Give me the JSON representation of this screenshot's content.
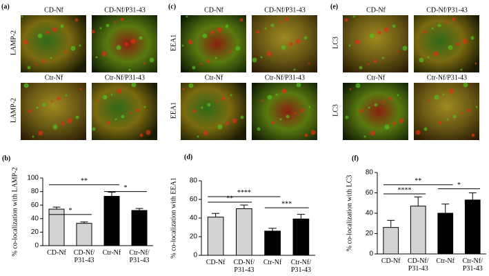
{
  "image_panels": [
    {
      "label": "(a)",
      "row_labels": [
        "LAMP-2",
        "LAMP-2"
      ],
      "image_labels": [
        "CD-Nf",
        "CD-Nf/P31-43",
        "Ctr-Nf",
        "Ctr-Nf/P31-43"
      ]
    },
    {
      "label": "(c)",
      "row_labels": [
        "EEA1",
        "EEA1"
      ],
      "image_labels": [
        "CD-Nf",
        "CD-Nf/P31-43",
        "Ctr-Nf",
        "Ctr-Nf/P31-43"
      ]
    },
    {
      "label": "(e)",
      "row_labels": [
        "LC3",
        "LC3"
      ],
      "image_labels": [
        "CD-Nf",
        "CD-Nf/P31-43",
        "Ctr-Nf",
        "Ctr-Nf/P31-43"
      ]
    }
  ],
  "chart_data": [
    {
      "type": "bar",
      "label": "(b)",
      "y_label": "% co-localization with LAMP-2",
      "categories": [
        "CD-Nf",
        "CD-Nf/\nP31-43",
        "Ctr-Nf",
        "Ctr-Nf/\nP31-43"
      ],
      "values": [
        54,
        33,
        73,
        52
      ],
      "errors": [
        3,
        2,
        6,
        3
      ],
      "colors": [
        "#d3d3d3",
        "#d3d3d3",
        "#000000",
        "#000000"
      ],
      "ylim": [
        0,
        100
      ],
      "yticks": [
        0,
        20,
        40,
        60,
        80,
        100
      ],
      "annotations": [
        {
          "text": "**",
          "from": 0,
          "to": 2,
          "y": 90
        },
        {
          "text": "*",
          "from": 0,
          "to": 1,
          "y": 46
        },
        {
          "text": "*",
          "from": 2,
          "to": 3,
          "y": 80
        }
      ]
    },
    {
      "type": "bar",
      "label": "(d)",
      "y_label": "% co-localization with EEA1",
      "categories": [
        "CD-Nf",
        "CD-Nf/\nP31-43",
        "Ctr-Nf",
        "Ctr-Nf/\nP31-43"
      ],
      "values": [
        41,
        50,
        26,
        39
      ],
      "errors": [
        4,
        4,
        3,
        5
      ],
      "colors": [
        "#d3d3d3",
        "#d3d3d3",
        "#000000",
        "#000000"
      ],
      "ylim": [
        0,
        80
      ],
      "yticks": [
        0,
        20,
        40,
        60,
        80
      ],
      "annotations": [
        {
          "text": "**",
          "from": 0,
          "to": 1,
          "y": 57
        },
        {
          "text": "****",
          "from": 0,
          "to": 2,
          "y": 63
        },
        {
          "text": "***",
          "from": 2,
          "to": 3,
          "y": 51
        }
      ]
    },
    {
      "type": "bar",
      "label": "(f)",
      "y_label": "% co-localization with LC3",
      "categories": [
        "CD-Nf",
        "CD-Nf/\nP31-43",
        "Ctr-Nf",
        "Ctr-Nf/\nP31-43"
      ],
      "values": [
        26,
        47,
        40,
        53
      ],
      "errors": [
        7,
        9,
        9,
        7
      ],
      "colors": [
        "#d3d3d3",
        "#d3d3d3",
        "#000000",
        "#000000"
      ],
      "ylim": [
        0,
        80
      ],
      "yticks": [
        0,
        20,
        40,
        60,
        80
      ],
      "annotations": [
        {
          "text": "****",
          "from": 0,
          "to": 1,
          "y": 59
        },
        {
          "text": "**",
          "from": 0,
          "to": 2,
          "y": 68
        },
        {
          "text": "*",
          "from": 2,
          "to": 3,
          "y": 64
        }
      ]
    }
  ]
}
